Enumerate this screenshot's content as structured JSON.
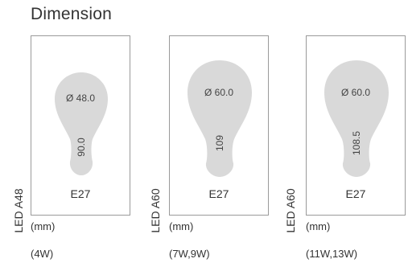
{
  "title": "Dimension",
  "panels": [
    {
      "model": "LED A48",
      "diameter": "Ø 48.0",
      "height": "90.0",
      "base": "E27",
      "unit": "(mm)",
      "wattage": "(4W)"
    },
    {
      "model": "LED A60",
      "diameter": "Ø 60.0",
      "height": "109",
      "base": "E27",
      "unit": "(mm)",
      "wattage": "(7W,9W)"
    },
    {
      "model": "LED A60",
      "diameter": "Ø 60.0",
      "height": "108.5",
      "base": "E27",
      "unit": "(mm)",
      "wattage": "(11W,13W)"
    }
  ],
  "colors": {
    "bulb": "#d9d9d9",
    "frame": "#9a9a9a"
  }
}
